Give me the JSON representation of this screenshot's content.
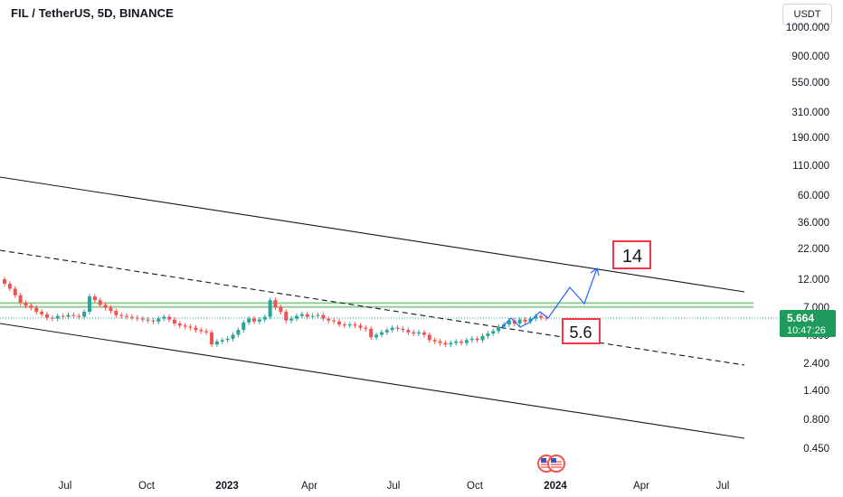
{
  "header": {
    "title": "FIL / TetherUS, 5D, BINANCE",
    "currency": "USDT"
  },
  "colors": {
    "up": "#26a69a",
    "down": "#ef5350",
    "projection": "#2962ff",
    "channel": "#131722",
    "zone": "#4caf50",
    "label_box": "#f23645",
    "price_tag": "#1e9a5a"
  },
  "chart_data": {
    "type": "candlestick",
    "symbol": "FIL / TetherUS",
    "interval": "5D",
    "exchange": "BINANCE",
    "y_scale": "log",
    "y_ticks": [
      "1000.000",
      "900.000",
      "550.000",
      "310.000",
      "190.000",
      "110.000",
      "60.000",
      "36.000",
      "22.000",
      "12.000",
      "7.000",
      "4.000",
      "2.400",
      "1.400",
      "0.800",
      "0.450"
    ],
    "x_ticks": [
      {
        "label": "Jul",
        "bold": false
      },
      {
        "label": "Oct",
        "bold": false
      },
      {
        "label": "2023",
        "bold": true
      },
      {
        "label": "Apr",
        "bold": false
      },
      {
        "label": "Jul",
        "bold": false
      },
      {
        "label": "Oct",
        "bold": false
      },
      {
        "label": "2024",
        "bold": true
      },
      {
        "label": "Apr",
        "bold": false
      },
      {
        "label": "Jul",
        "bold": false
      }
    ],
    "x_range": [
      "2022-04",
      "2024-08"
    ],
    "candles_close": [
      11.0,
      10.0,
      8.8,
      7.6,
      7.2,
      6.9,
      6.4,
      6.1,
      5.7,
      5.6,
      5.9,
      5.8,
      6.0,
      5.9,
      5.8,
      6.4,
      8.6,
      8.0,
      7.3,
      6.9,
      6.5,
      6.0,
      5.9,
      5.8,
      5.7,
      5.6,
      5.5,
      5.4,
      5.3,
      5.6,
      5.8,
      5.5,
      5.1,
      4.9,
      4.8,
      4.7,
      4.5,
      4.4,
      4.3,
      3.4,
      3.6,
      3.7,
      3.8,
      4.1,
      4.5,
      5.2,
      5.6,
      5.3,
      5.5,
      5.8,
      8.0,
      7.0,
      6.4,
      5.4,
      5.6,
      5.9,
      6.1,
      5.8,
      5.9,
      6.0,
      5.6,
      5.4,
      5.3,
      5.0,
      4.9,
      5.0,
      4.9,
      4.7,
      4.6,
      3.9,
      4.1,
      4.3,
      4.5,
      4.7,
      4.6,
      4.5,
      4.3,
      4.2,
      4.3,
      4.1,
      3.7,
      3.6,
      3.5,
      3.4,
      3.5,
      3.6,
      3.5,
      3.7,
      3.8,
      3.7,
      4.0,
      4.2,
      4.4,
      4.8,
      5.0,
      5.4,
      5.1,
      5.5,
      5.3,
      5.6,
      5.9,
      5.7,
      5.664
    ],
    "zone_levels": [
      7.0,
      7.6
    ],
    "projection_path": [
      5.664,
      8.4,
      6.9,
      12.5
    ],
    "annotations": [
      {
        "text": "14",
        "target": 14
      },
      {
        "text": "5.6",
        "target": 5.6
      }
    ],
    "last_price": "5.664",
    "countdown": "10:47:26",
    "channel": {
      "upper_line": true,
      "middle_dashed_line": true,
      "lower_line": true,
      "direction": "descending"
    }
  }
}
